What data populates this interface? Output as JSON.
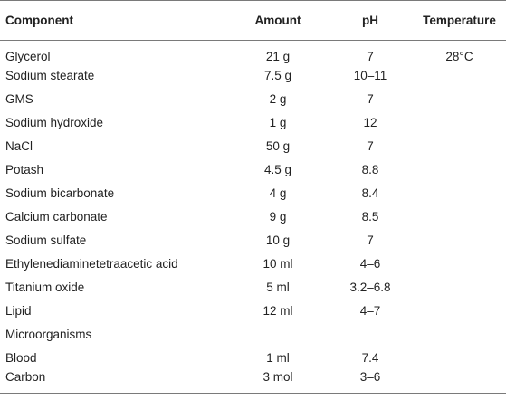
{
  "table": {
    "headers": {
      "component": "Component",
      "amount": "Amount",
      "ph": "pH",
      "temperature": "Temperature"
    },
    "rows": [
      {
        "component": "Glycerol",
        "amount": "21 g",
        "ph": "7",
        "temperature": "28°C"
      },
      {
        "component": "Sodium stearate",
        "amount": "7.5 g",
        "ph": "10–11",
        "temperature": ""
      },
      {
        "component": "GMS",
        "amount": "2 g",
        "ph": "7",
        "temperature": ""
      },
      {
        "component": "Sodium hydroxide",
        "amount": "1 g",
        "ph": "12",
        "temperature": ""
      },
      {
        "component": "NaCl",
        "amount": "50 g",
        "ph": "7",
        "temperature": ""
      },
      {
        "component": "Potash",
        "amount": "4.5 g",
        "ph": "8.8",
        "temperature": ""
      },
      {
        "component": "Sodium bicarbonate",
        "amount": "4 g",
        "ph": "8.4",
        "temperature": ""
      },
      {
        "component": "Calcium carbonate",
        "amount": "9 g",
        "ph": "8.5",
        "temperature": ""
      },
      {
        "component": "Sodium sulfate",
        "amount": "10 g",
        "ph": "7",
        "temperature": ""
      },
      {
        "component": "Ethylenediaminetetraacetic acid",
        "amount": "10 ml",
        "ph": "4–6",
        "temperature": ""
      },
      {
        "component": "Titanium oxide",
        "amount": "5 ml",
        "ph": "3.2–6.8",
        "temperature": ""
      },
      {
        "component": "Lipid",
        "amount": "12 ml",
        "ph": "4–7",
        "temperature": ""
      },
      {
        "component": "Microorganisms",
        "amount": "",
        "ph": "",
        "temperature": ""
      },
      {
        "component": "Blood",
        "amount": "1 ml",
        "ph": "7.4",
        "temperature": ""
      },
      {
        "component": "Carbon",
        "amount": "3 mol",
        "ph": "3–6",
        "temperature": ""
      }
    ]
  }
}
